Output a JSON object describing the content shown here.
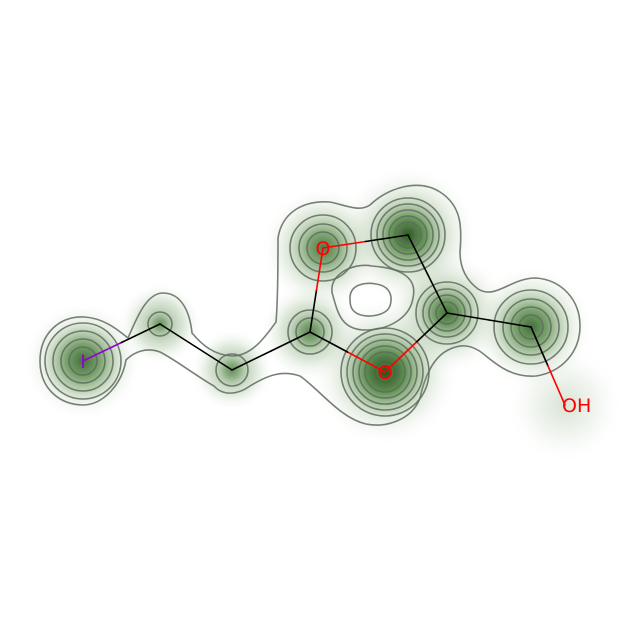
{
  "molecule": {
    "atoms": [
      {
        "id": "I1",
        "label": "I",
        "color": "#9400d3",
        "kind": "iodine"
      },
      {
        "id": "C2",
        "label": "",
        "color": "#000000",
        "kind": "carbon"
      },
      {
        "id": "C3",
        "label": "",
        "color": "#000000",
        "kind": "carbon"
      },
      {
        "id": "C4",
        "label": "",
        "color": "#000000",
        "kind": "carbon"
      },
      {
        "id": "O5",
        "label": "O",
        "color": "#ff0000",
        "kind": "oxygen"
      },
      {
        "id": "C6",
        "label": "",
        "color": "#000000",
        "kind": "carbon"
      },
      {
        "id": "C7",
        "label": "",
        "color": "#000000",
        "kind": "carbon"
      },
      {
        "id": "O8",
        "label": "O",
        "color": "#ff0000",
        "kind": "oxygen"
      },
      {
        "id": "C9",
        "label": "",
        "color": "#000000",
        "kind": "carbon"
      },
      {
        "id": "O10",
        "label": "OH",
        "color": "#ff0000",
        "kind": "hydroxyl"
      }
    ],
    "bonds": [
      [
        "I1",
        "C2"
      ],
      [
        "C2",
        "C3"
      ],
      [
        "C3",
        "C4"
      ],
      [
        "C4",
        "O5"
      ],
      [
        "O5",
        "C6"
      ],
      [
        "C6",
        "C7"
      ],
      [
        "C7",
        "O8"
      ],
      [
        "O8",
        "C4"
      ],
      [
        "C7",
        "C9"
      ],
      [
        "C9",
        "O10"
      ]
    ]
  },
  "colors": {
    "carbon_bond": "#000000",
    "oxygen": "#ff0000",
    "iodine": "#9400d3",
    "density_fill": "#2e6b1f",
    "contour_line": "#5f6b5f",
    "background": "#ffffff"
  }
}
